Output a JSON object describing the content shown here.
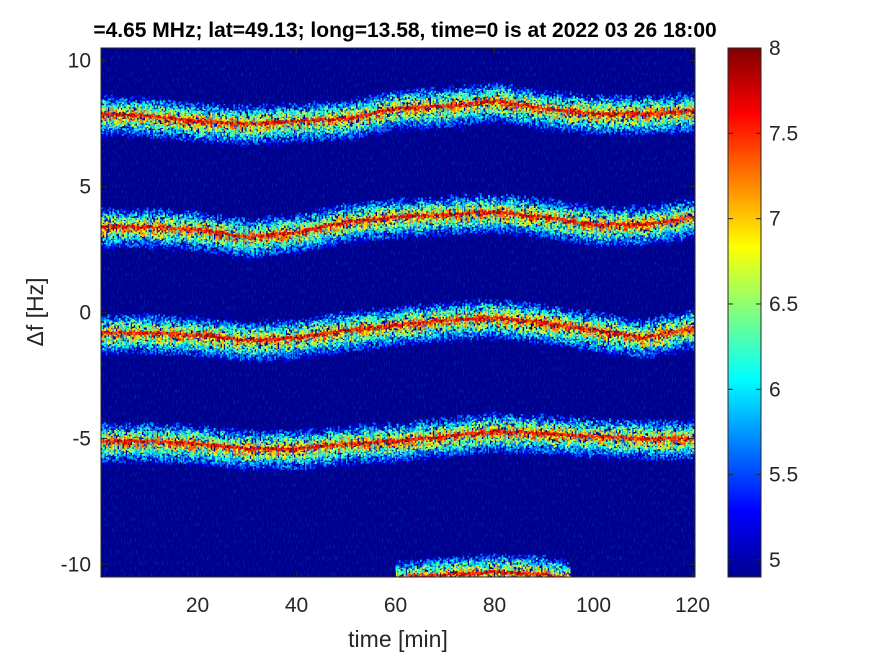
{
  "chart_data": {
    "type": "heatmap",
    "title": "=4.65 MHz;  lat=49.13; long=13.58, time=0 is at 2022 03 26 18:00",
    "xlabel": "time [min]",
    "ylabel": "Δf [Hz]",
    "xlim": [
      0.5,
      120.5
    ],
    "ylim": [
      -10.5,
      10.5
    ],
    "xticks": [
      20,
      40,
      60,
      80,
      100,
      120
    ],
    "xtick_labels": [
      "20",
      "40",
      "60",
      "80",
      "100",
      "120"
    ],
    "yticks": [
      10,
      5,
      0,
      -5,
      -10
    ],
    "ytick_labels": [
      "10",
      "5",
      "0",
      "-5",
      "-10"
    ],
    "colorbar": {
      "colormap": "jet",
      "clim": [
        4.9,
        8
      ],
      "ticks": [
        5,
        5.5,
        6,
        6.5,
        7,
        7.5,
        8
      ],
      "tick_labels": [
        "5",
        "5.5",
        "6",
        "6.5",
        "7",
        "7.5",
        "8"
      ]
    },
    "background_value": 4.95,
    "series": [
      {
        "time_min": [
          0,
          10,
          20,
          30,
          40,
          50,
          60,
          70,
          80,
          90,
          100,
          110,
          120
        ],
        "delta_f_hz": [
          7.9,
          7.8,
          7.6,
          7.5,
          7.6,
          7.7,
          8.1,
          8.2,
          8.4,
          8.1,
          7.9,
          7.9,
          8.0
        ]
      },
      {
        "time_min": [
          0,
          10,
          20,
          30,
          40,
          50,
          60,
          70,
          80,
          90,
          100,
          110,
          120
        ],
        "delta_f_hz": [
          3.4,
          3.4,
          3.3,
          3.0,
          3.2,
          3.6,
          3.8,
          3.9,
          4.0,
          3.8,
          3.5,
          3.5,
          3.8
        ]
      },
      {
        "time_min": [
          0,
          10,
          20,
          30,
          40,
          50,
          60,
          70,
          80,
          90,
          100,
          110,
          120
        ],
        "delta_f_hz": [
          -0.8,
          -0.8,
          -0.9,
          -1.1,
          -1.0,
          -0.7,
          -0.5,
          -0.3,
          -0.2,
          -0.4,
          -0.7,
          -1.0,
          -0.6
        ]
      },
      {
        "time_min": [
          0,
          10,
          20,
          30,
          40,
          50,
          60,
          70,
          80,
          90,
          100,
          110,
          120
        ],
        "delta_f_hz": [
          -5.1,
          -5.1,
          -5.2,
          -5.4,
          -5.4,
          -5.2,
          -5.1,
          -4.9,
          -4.7,
          -4.8,
          -4.9,
          -5.0,
          -5.0
        ]
      },
      {
        "time_min": [
          60,
          70,
          80,
          90,
          95
        ],
        "delta_f_hz": [
          -10.6,
          -10.4,
          -10.3,
          -10.4,
          -10.6
        ]
      }
    ]
  }
}
